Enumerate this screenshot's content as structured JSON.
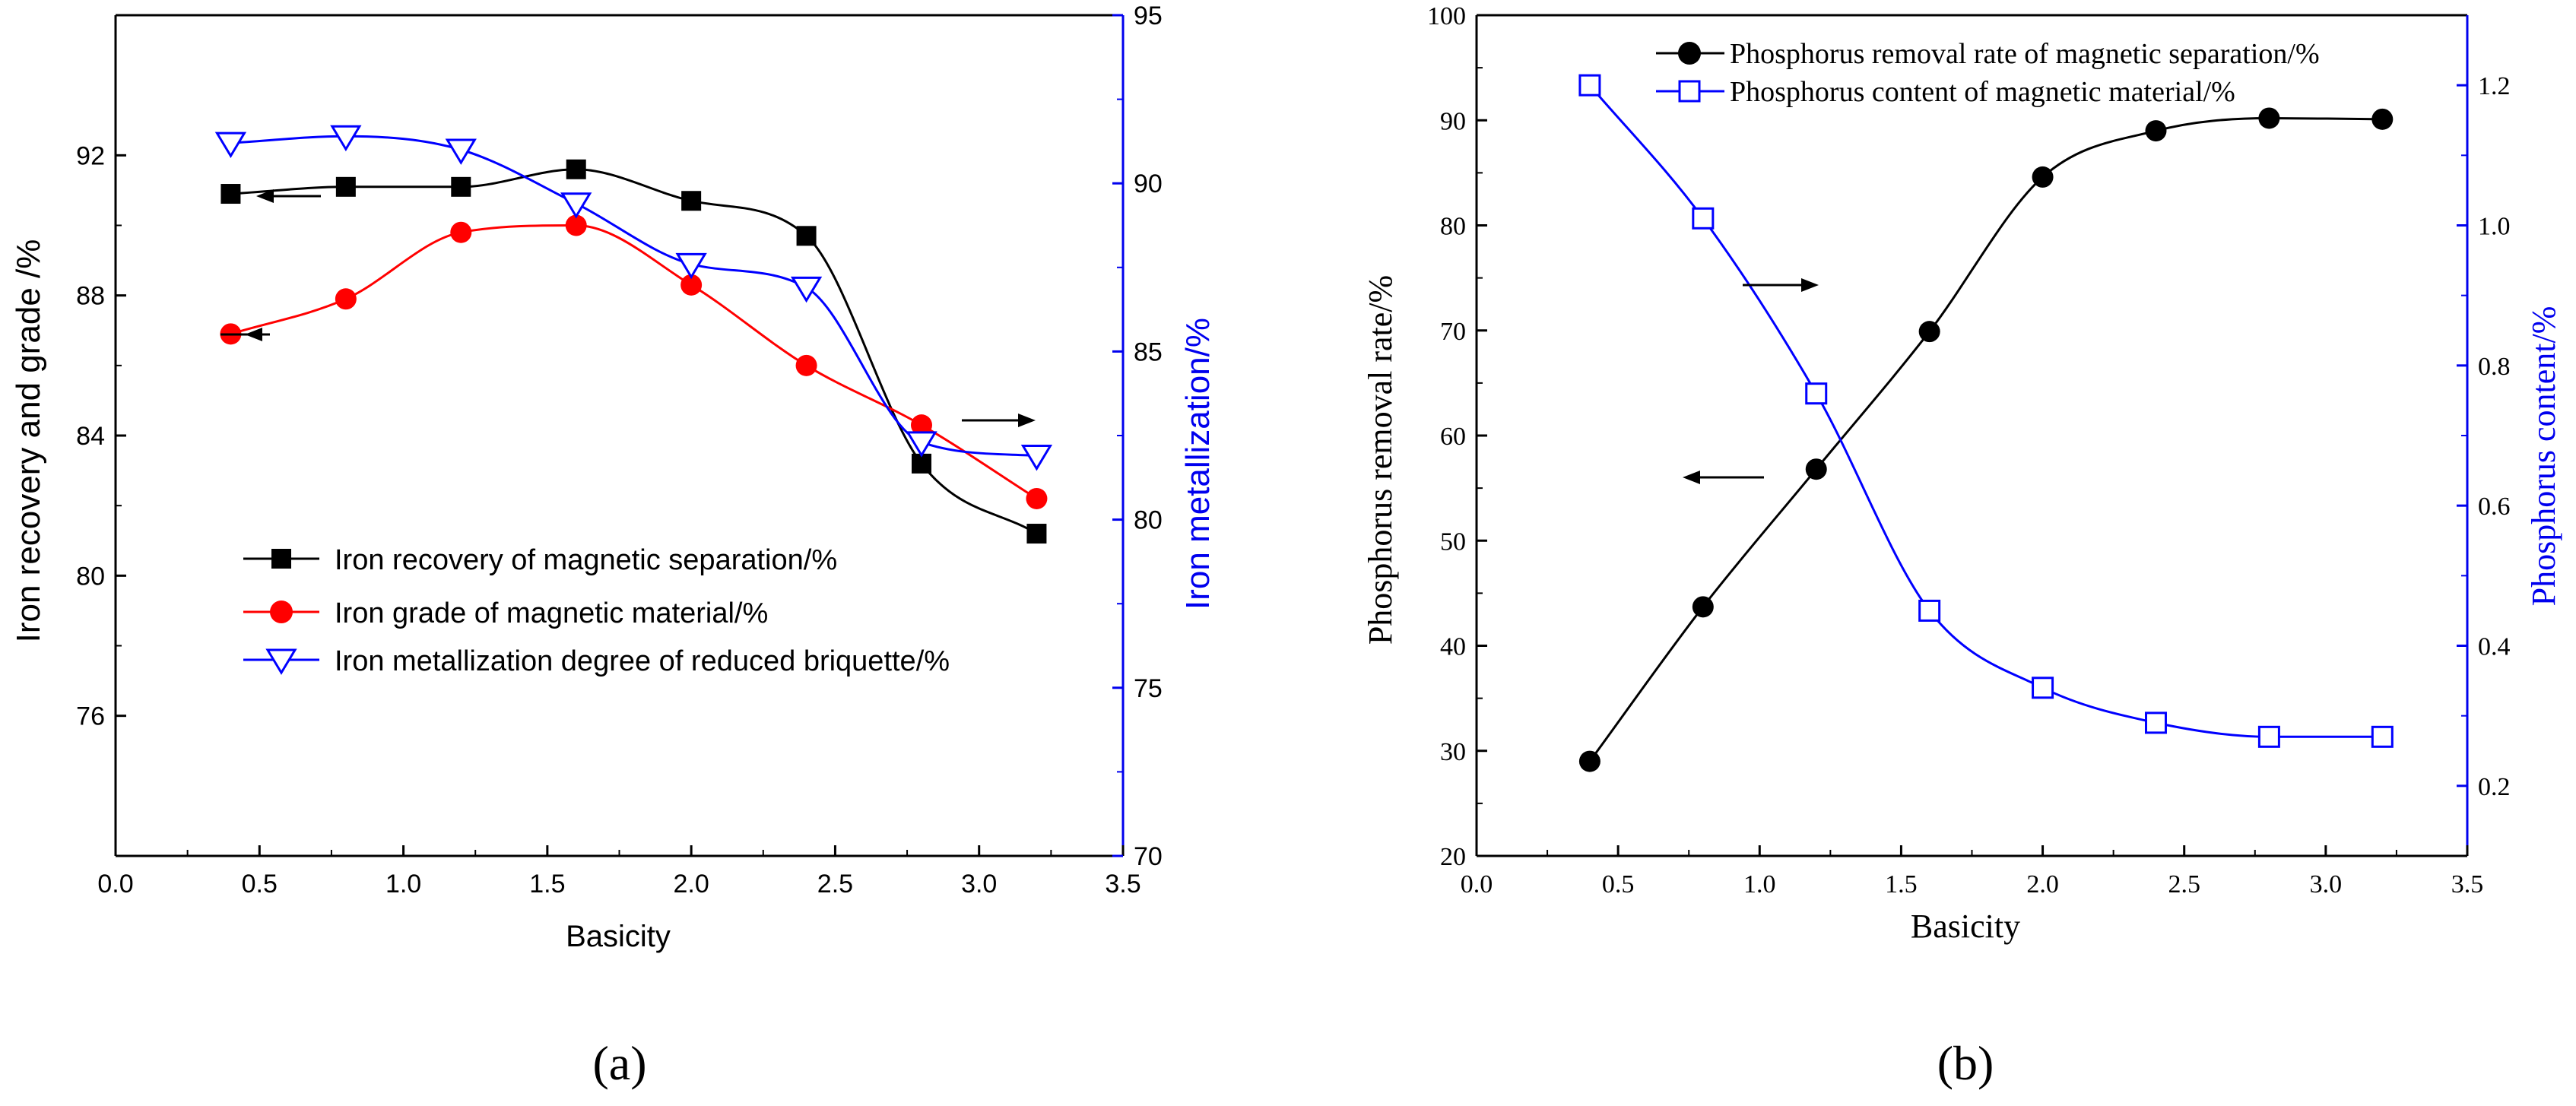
{
  "chart_data": [
    {
      "id": "a",
      "type": "line",
      "panel_label": "(a)",
      "xlabel": "Basicity",
      "ylabel_left": "Iron recovery and grade /%",
      "ylabel_right": "Iron metallization/%",
      "xlim": [
        0.0,
        3.5
      ],
      "ylim_left": [
        72,
        96
      ],
      "ylim_right": [
        70,
        95
      ],
      "xticks": [
        0.0,
        0.5,
        1.0,
        1.5,
        2.0,
        2.5,
        3.0,
        3.5
      ],
      "xtick_labels": [
        "0.0",
        "0.5",
        "1.0",
        "1.5",
        "2.0",
        "2.5",
        "3.0",
        "3.5"
      ],
      "yticks_left": [
        76,
        80,
        84,
        88,
        92
      ],
      "ytick_labels_left": [
        "76",
        "80",
        "84",
        "88",
        "92"
      ],
      "yticks_right": [
        70,
        75,
        80,
        85,
        90,
        95
      ],
      "ytick_labels_right": [
        "70",
        "75",
        "80",
        "85",
        "90",
        "95"
      ],
      "legend_position": "bottom-left",
      "axis_color_right": "#0000ee",
      "series": [
        {
          "name": "Iron recovery of magnetic separation/%",
          "axis": "left",
          "color": "#000000",
          "marker": "square-filled",
          "x": [
            0.4,
            0.8,
            1.2,
            1.6,
            2.0,
            2.4,
            2.8,
            3.2
          ],
          "values": [
            90.9,
            91.1,
            91.1,
            91.6,
            90.7,
            89.7,
            83.2,
            81.2
          ]
        },
        {
          "name": "Iron grade of magnetic material/%",
          "axis": "left",
          "color": "#ff0000",
          "marker": "circle-filled",
          "x": [
            0.4,
            0.8,
            1.2,
            1.6,
            2.0,
            2.4,
            2.8,
            3.2
          ],
          "values": [
            86.9,
            87.9,
            89.8,
            90.0,
            88.3,
            86.0,
            84.3,
            82.2
          ]
        },
        {
          "name": "Iron metallization degree of reduced briquette/%",
          "axis": "right",
          "color": "#0000ff",
          "marker": "triangle-down-open",
          "x": [
            0.4,
            0.8,
            1.2,
            1.6,
            2.0,
            2.4,
            2.8,
            3.2
          ],
          "values": [
            91.2,
            91.4,
            91.0,
            89.4,
            87.6,
            86.9,
            82.3,
            81.9
          ]
        }
      ],
      "annotations": [
        {
          "type": "arrow",
          "direction": "left",
          "series": "Iron recovery of magnetic separation/%"
        },
        {
          "type": "arrow",
          "direction": "left",
          "series": "Iron grade of magnetic material/%"
        },
        {
          "type": "arrow",
          "direction": "right",
          "series": "Iron metallization degree of reduced briquette/%"
        }
      ]
    },
    {
      "id": "b",
      "type": "line",
      "panel_label": "(b)",
      "xlabel": "Basicity",
      "ylabel_left": "Phosphorus removal rate/%",
      "ylabel_right": "Phosphorus content/%",
      "xlim": [
        0.0,
        3.5
      ],
      "ylim_left": [
        20,
        100
      ],
      "ylim_right": [
        0.1,
        1.3
      ],
      "xticks": [
        0.0,
        0.5,
        1.0,
        1.5,
        2.0,
        2.5,
        3.0,
        3.5
      ],
      "xtick_labels": [
        "0.0",
        "0.5",
        "1.0",
        "1.5",
        "2.0",
        "2.5",
        "3.0",
        "3.5"
      ],
      "yticks_left": [
        20,
        30,
        40,
        50,
        60,
        70,
        80,
        90,
        100
      ],
      "ytick_labels_left": [
        "20",
        "30",
        "40",
        "50",
        "60",
        "70",
        "80",
        "90",
        "100"
      ],
      "yticks_right": [
        0.2,
        0.4,
        0.6,
        0.8,
        1.0,
        1.2
      ],
      "ytick_labels_right": [
        "0.2",
        "0.4",
        "0.6",
        "0.8",
        "1.0",
        "1.2"
      ],
      "legend_position": "top-center",
      "axis_color_right": "#0000ee",
      "series": [
        {
          "name": "Phosphorus removal rate of magnetic separation/%",
          "axis": "left",
          "color": "#000000",
          "marker": "circle-filled",
          "x": [
            0.4,
            0.8,
            1.2,
            1.6,
            2.0,
            2.4,
            2.8,
            3.2
          ],
          "values": [
            29.0,
            43.7,
            56.8,
            69.9,
            84.6,
            89.0,
            90.2,
            90.1
          ]
        },
        {
          "name": "Phosphorus content of magnetic material/%",
          "axis": "right",
          "color": "#0000ff",
          "marker": "square-open",
          "x": [
            0.4,
            0.8,
            1.2,
            1.6,
            2.0,
            2.4,
            2.8,
            3.2
          ],
          "values": [
            1.2,
            1.01,
            0.76,
            0.45,
            0.34,
            0.29,
            0.27,
            0.27
          ]
        }
      ],
      "annotations": [
        {
          "type": "arrow",
          "direction": "left",
          "series": "Phosphorus removal rate of magnetic separation/%"
        },
        {
          "type": "arrow",
          "direction": "right",
          "series": "Phosphorus content of magnetic material/%"
        }
      ]
    }
  ]
}
